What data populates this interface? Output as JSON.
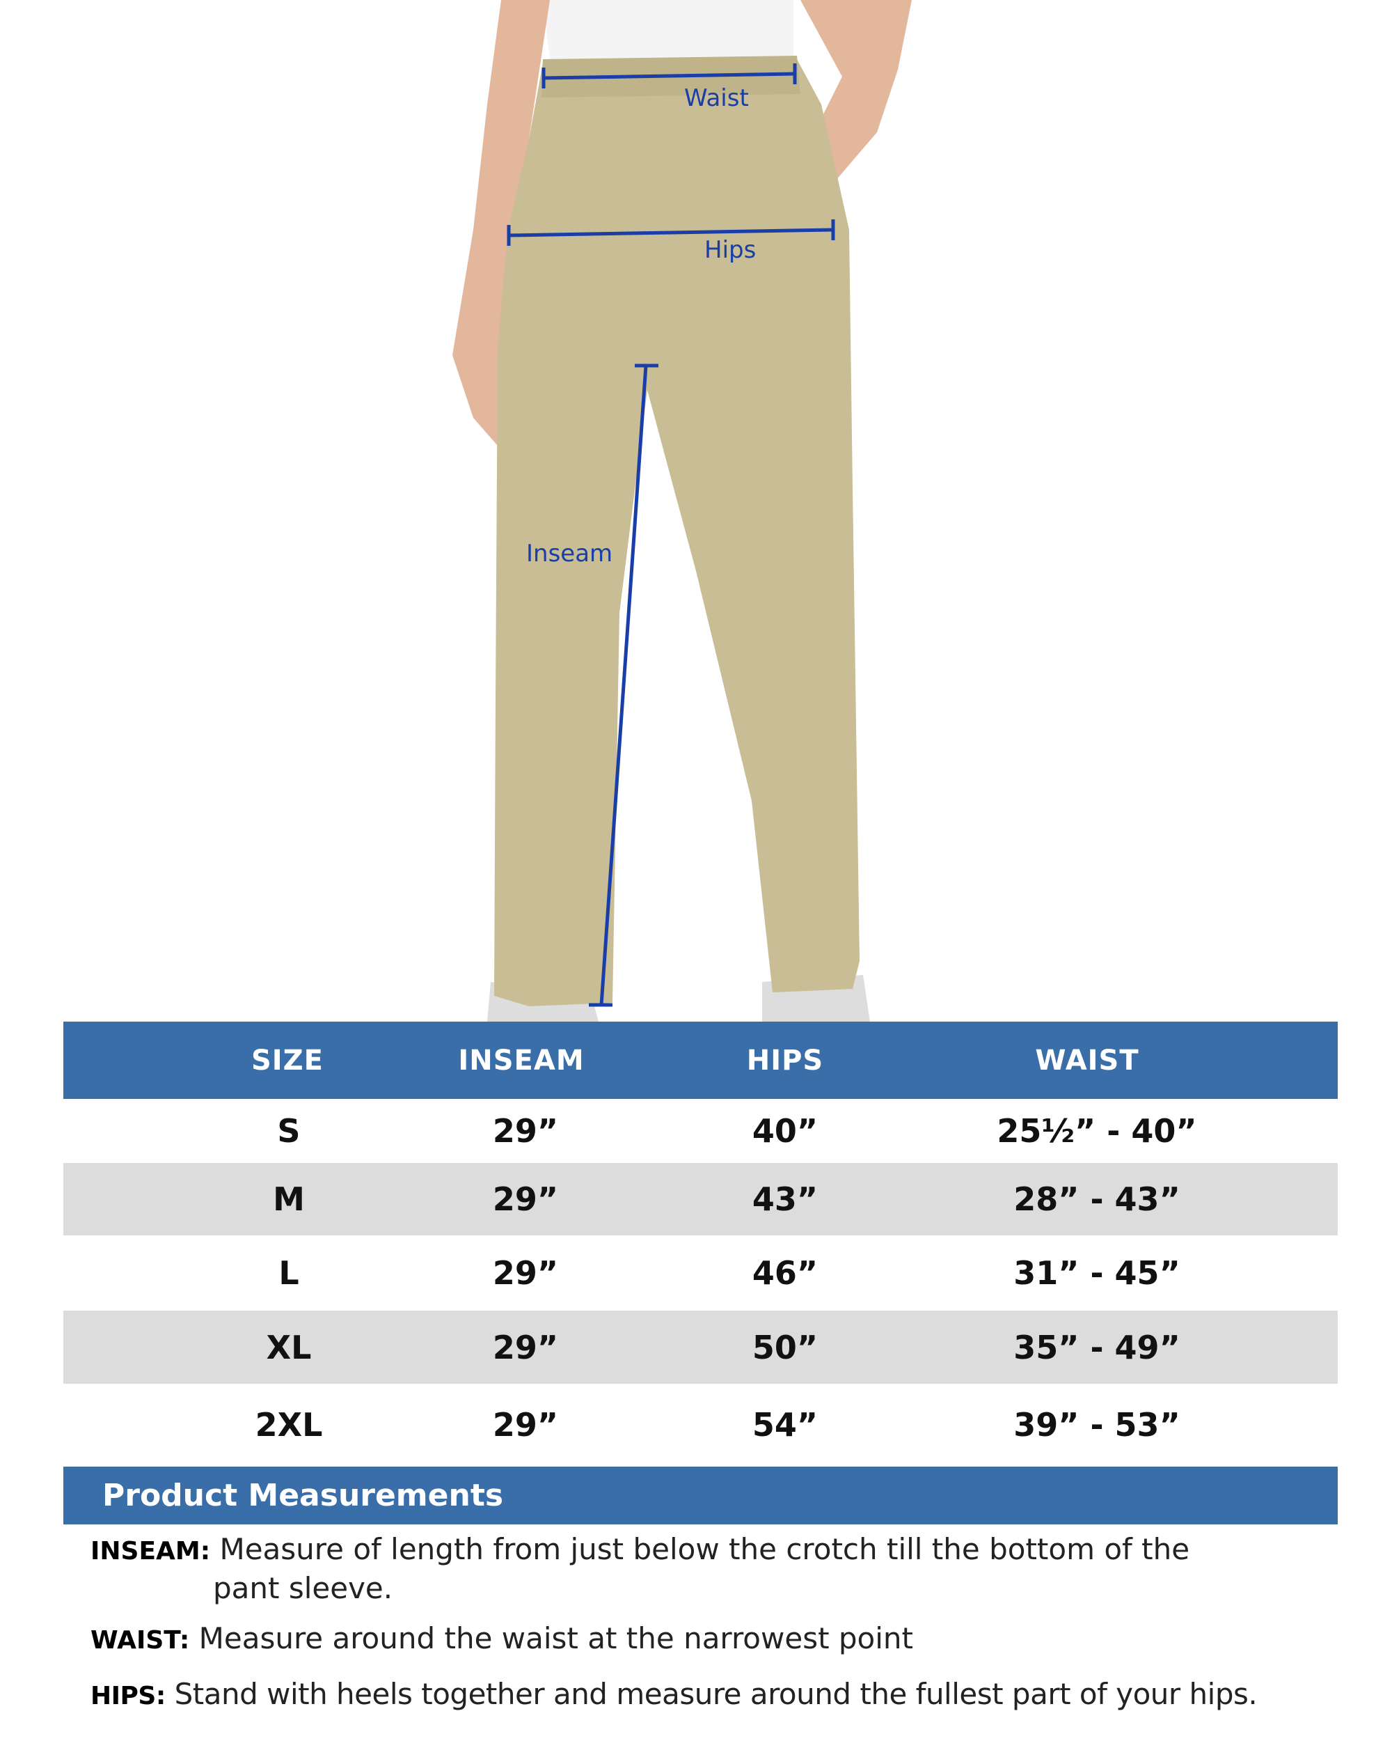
{
  "photo": {
    "labels": {
      "waist": "Waist",
      "hips": "Hips",
      "inseam": "Inseam"
    },
    "colors": {
      "measure_line": "#1a3ea8",
      "pants": "#c8bd95",
      "skin": "#e2b79c"
    }
  },
  "table": {
    "headers": [
      "SIZE",
      "INSEAM",
      "HIPS",
      "WAIST"
    ],
    "header_color": "#3a6ea9",
    "rows": [
      [
        "S",
        "29”",
        "40”",
        "25½” - 40”"
      ],
      [
        "M",
        "29”",
        "43”",
        "28” - 43”"
      ],
      [
        "L",
        "29”",
        "46”",
        "31” - 45”"
      ],
      [
        "XL",
        "29”",
        "50”",
        "35” - 49”"
      ],
      [
        "2XL",
        "29”",
        "54”",
        "39” - 53”"
      ]
    ]
  },
  "measurements": {
    "title": "Product Measurements",
    "items": [
      {
        "label": "INSEAM:",
        "text": "Measure of length from just below the crotch till the bottom of the",
        "text2": "pant sleeve."
      },
      {
        "label": "WAIST:",
        "text": "Measure around the waist at the narrowest point"
      },
      {
        "label": "HIPS:",
        "text": "Stand with heels together and measure around the fullest part of your hips."
      }
    ]
  }
}
